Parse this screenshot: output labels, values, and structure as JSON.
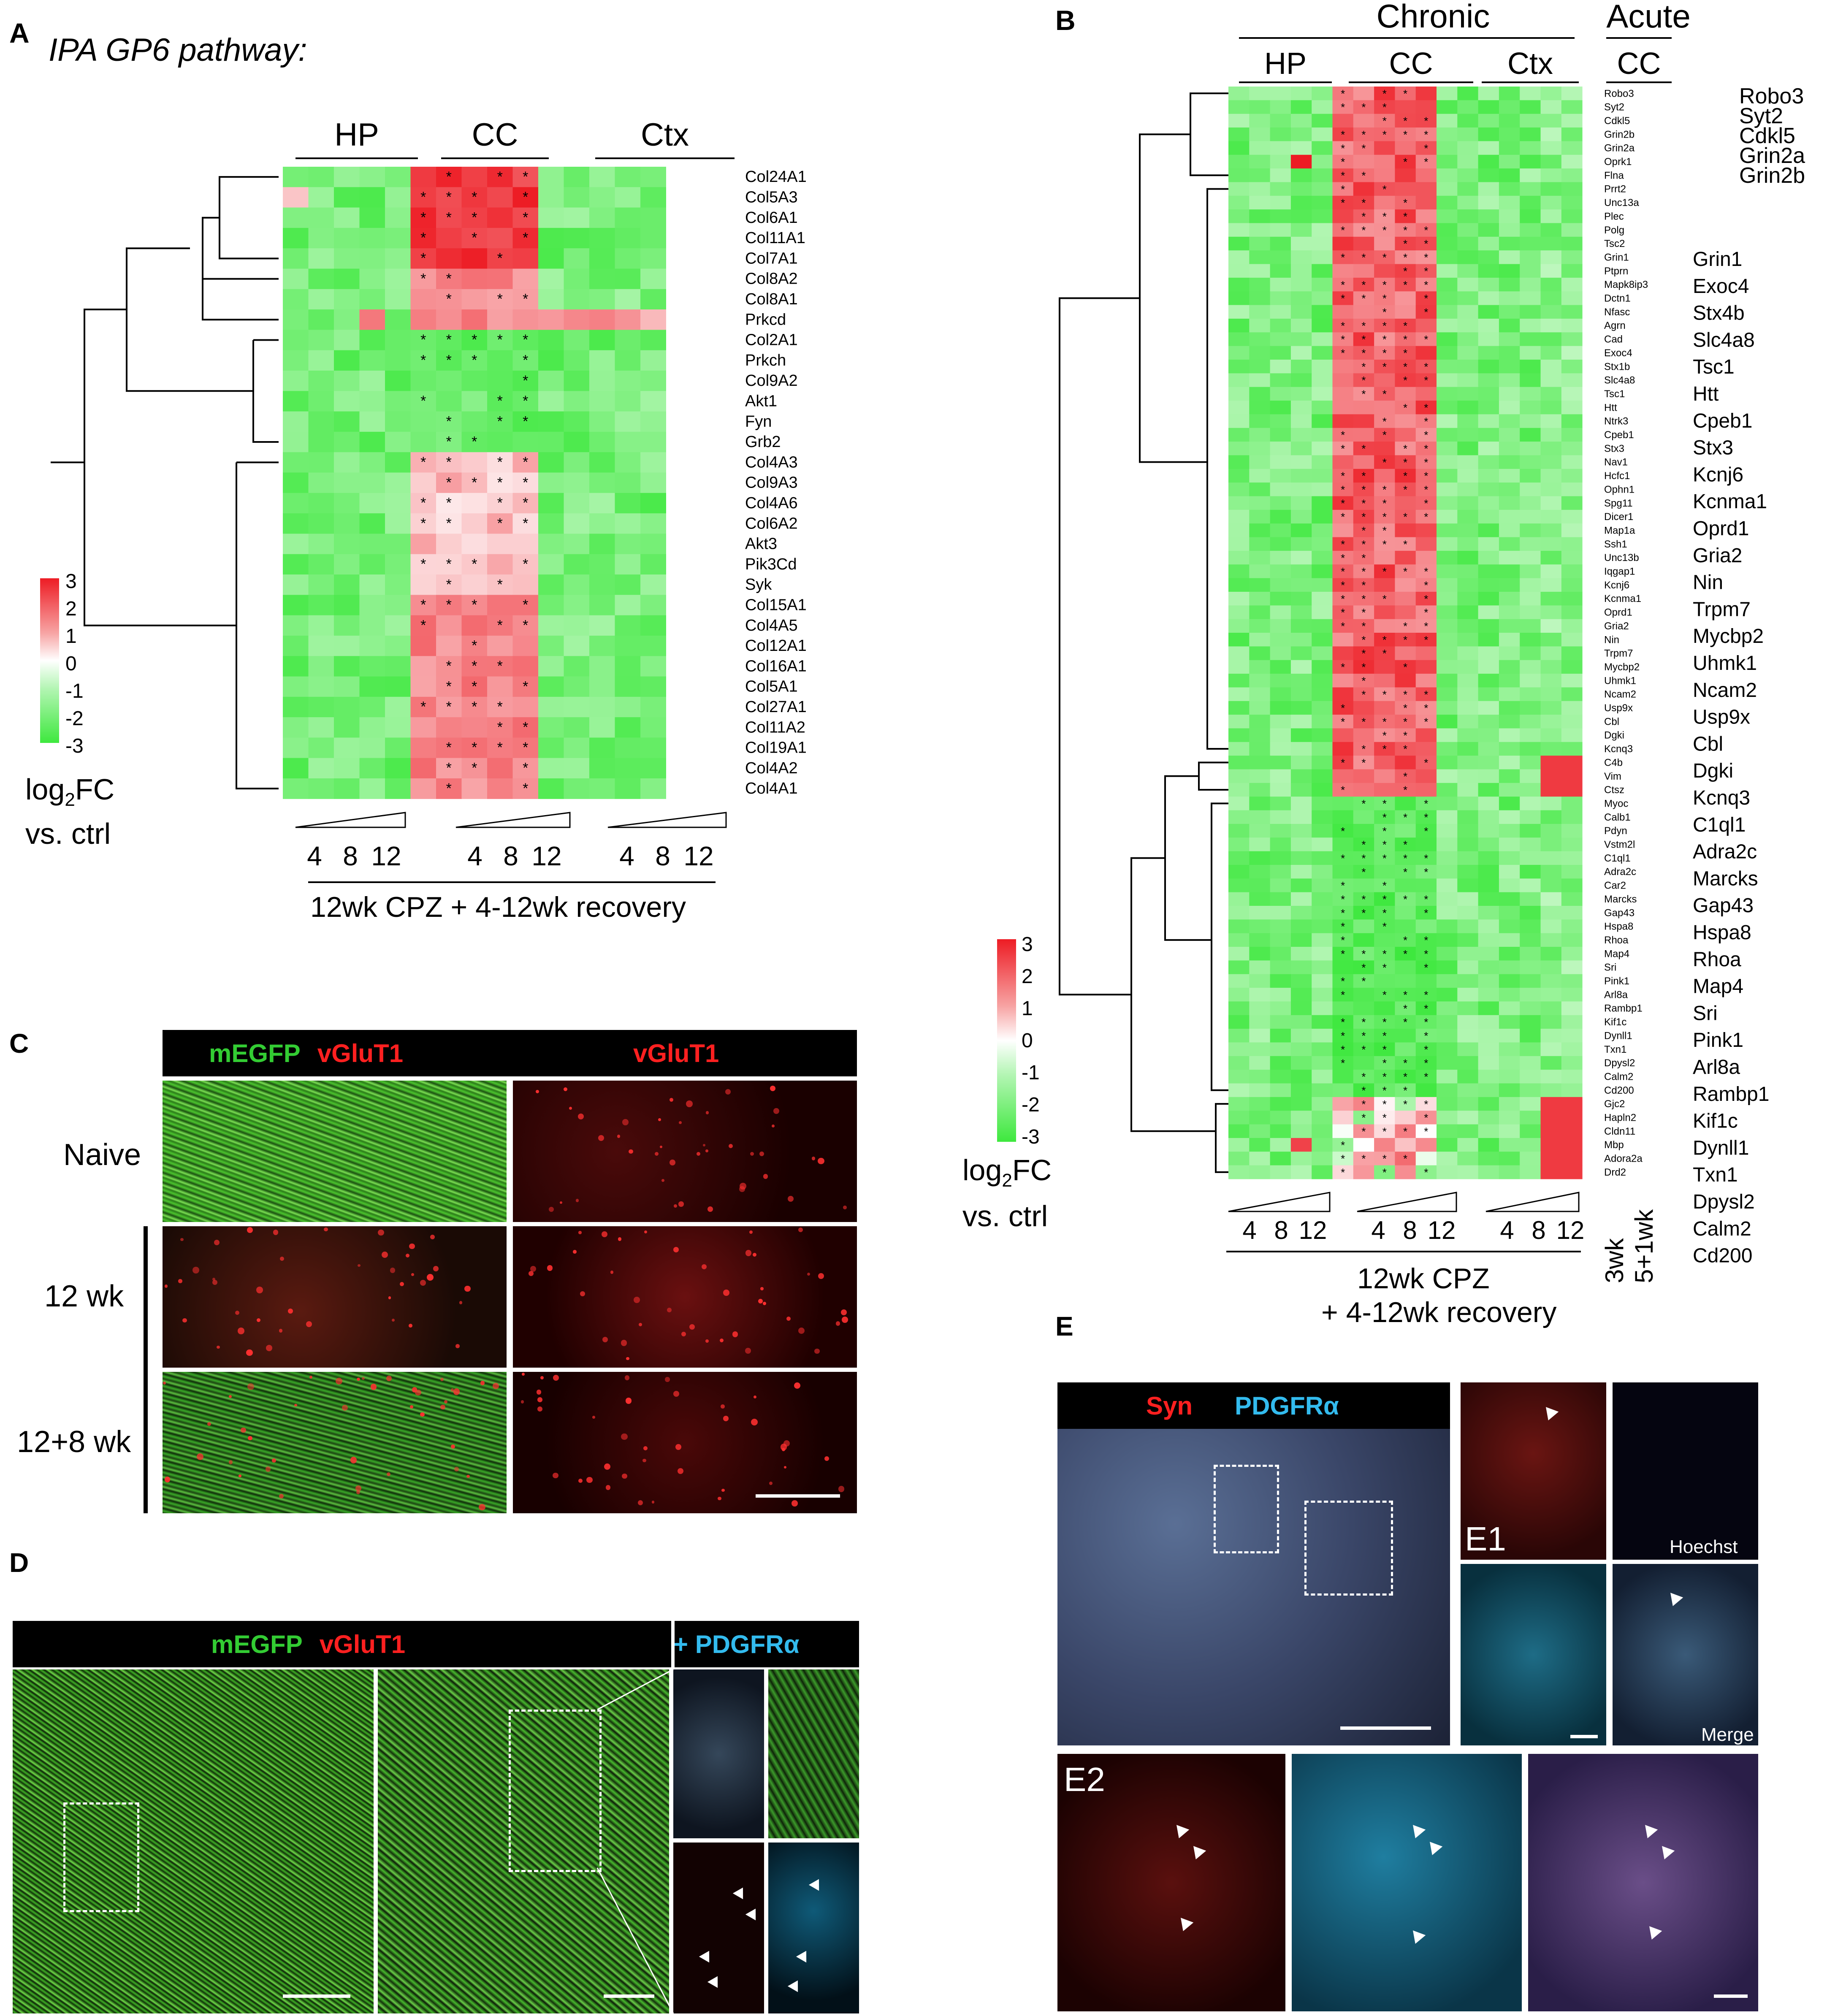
{
  "panelA": {
    "letter": "A",
    "title": "IPA GP6 pathway:",
    "groups": [
      "HP",
      "CC",
      "Ctx"
    ],
    "genes": [
      "Col24A1",
      "Col5A3",
      "Col6A1",
      "Col11A1",
      "Col7A1",
      "Col8A2",
      "Col8A1",
      "Prkcd",
      "Col2A1",
      "Prkch",
      "Col9A2",
      "Akt1",
      "Fyn",
      "Grb2",
      "Col4A3",
      "Col9A3",
      "Col4A6",
      "Col6A2",
      "Akt3",
      "Pik3Cd",
      "Syk",
      "Col15A1",
      "Col4A5",
      "Col12A1",
      "Col16A1",
      "Col5A1",
      "Col27A1",
      "Col11A2",
      "Col19A1",
      "Col4A2",
      "Col4A1"
    ],
    "timepoints": [
      "4",
      "8",
      "12"
    ],
    "xlabel": "12wk CPZ + 4-12wk recovery",
    "colorbar_ticks": [
      "3",
      "2",
      "1",
      "0",
      "-1",
      "-2",
      "-3"
    ],
    "colorbar_label1": "log",
    "colorbar_sub": "2",
    "colorbar_label2": "FC",
    "colorbar_label3": "vs. ctrl"
  },
  "panelB": {
    "letter": "B",
    "header_chronic": "Chronic",
    "header_acute": "Acute",
    "groups": [
      "HP",
      "CC",
      "Ctx",
      "CC"
    ],
    "genes": [
      "Robo3",
      "Syt2",
      "Cdkl5",
      "Grin2b",
      "Grin2a",
      "Oprk1",
      "Flna",
      "Prrt2",
      "Unc13a",
      "Plec",
      "Polg",
      "Tsc2",
      "Grin1",
      "Ptprn",
      "Mapk8ip3",
      "Dctn1",
      "Nfasc",
      "Agrn",
      "Cad",
      "Exoc4",
      "Stx1b",
      "Slc4a8",
      "Tsc1",
      "Htt",
      "Ntrk3",
      "Cpeb1",
      "Stx3",
      "Nav1",
      "Hcfc1",
      "Ophn1",
      "Spg11",
      "Dicer1",
      "Map1a",
      "Ssh1",
      "Unc13b",
      "Iqgap1",
      "Kcnj6",
      "Kcnma1",
      "Oprd1",
      "Gria2",
      "Nin",
      "Trpm7",
      "Mycbp2",
      "Uhmk1",
      "Ncam2",
      "Usp9x",
      "Cbl",
      "Dgki",
      "Kcnq3",
      "C4b",
      "Vim",
      "Ctsz",
      "Myoc",
      "Calb1",
      "Pdyn",
      "Vstm2l",
      "C1ql1",
      "Adra2c",
      "Car2",
      "Marcks",
      "Gap43",
      "Hspa8",
      "Rhoa",
      "Map4",
      "Sri",
      "Pink1",
      "Arl8a",
      "Rambp1",
      "Kif1c",
      "Dynll1",
      "Txn1",
      "Dpysl2",
      "Calm2",
      "Cd200",
      "Gjc2",
      "Hapln2",
      "Cldn11",
      "Mbp",
      "Adora2a",
      "Drd2"
    ],
    "callouts_top": [
      "Robo3",
      "Syt2",
      "Cdkl5",
      "Grin2a",
      "Grin2b"
    ],
    "callouts_mid": [
      "Grin1",
      "Exoc4",
      "Stx4b",
      "Slc4a8",
      "Tsc1",
      "Htt",
      "Cpeb1",
      "Stx3",
      "Kcnj6",
      "Kcnma1",
      "Oprd1",
      "Gria2",
      "Nin",
      "Trpm7",
      "Mycbp2",
      "Uhmk1",
      "Ncam2",
      "Usp9x",
      "Cbl",
      "Dgki",
      "Kcnq3",
      "C1ql1",
      "Adra2c",
      "Marcks",
      "Gap43",
      "Hspa8",
      "Rhoa",
      "Map4",
      "Sri",
      "Pink1",
      "Arl8a",
      "Rambp1",
      "Kif1c",
      "Dynll1",
      "Txn1",
      "Dpysl2",
      "Calm2",
      "Cd200"
    ],
    "timepoints": [
      "4",
      "8",
      "12"
    ],
    "acute_labels": [
      "3wk",
      "5+1wk"
    ],
    "xlabel1": "12wk CPZ",
    "xlabel2": "+ 4-12wk recovery",
    "colorbar_ticks": [
      "3",
      "2",
      "1",
      "0",
      "-1",
      "-2",
      "-3"
    ],
    "colorbar_label1": "log",
    "colorbar_sub": "2",
    "colorbar_label2": "FC",
    "colorbar_label3": "vs. ctrl"
  },
  "panelC": {
    "letter": "C",
    "header_green": "mEGFP",
    "header_red1": "vGluT1",
    "header_red2": "vGluT1",
    "rows": [
      "Naive",
      "12 wk",
      "12+8 wk"
    ]
  },
  "panelD": {
    "letter": "D",
    "header_green": "mEGFP",
    "header_red": "vGluT1",
    "header_cyan": "+ PDGFRα"
  },
  "panelE": {
    "letter": "E",
    "header_red": "Syn",
    "header_cyan": "PDGFRα",
    "e1": "E1",
    "e2": "E2",
    "hoechst": "Hoechst",
    "merge": "Merge"
  },
  "colors": {
    "heat_red": "#ed1c24",
    "heat_green": "#3ee83e",
    "heat_white": "#ffffff",
    "label_green": "#33cc33",
    "label_red": "#ff2020",
    "label_cyan": "#33bbee"
  }
}
